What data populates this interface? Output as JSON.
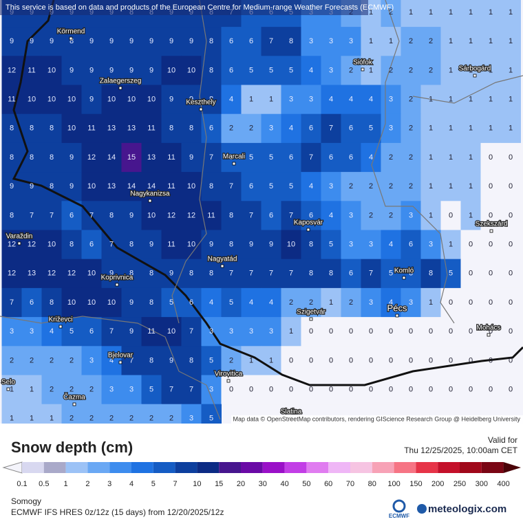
{
  "header": {
    "text": "This service is based on data and products of the European Centre for Medium-range Weather Forecasts (ECMWF)"
  },
  "map": {
    "grid": [
      [
        9,
        9,
        9,
        9,
        9,
        9,
        8,
        8,
        9,
        9,
        8,
        7,
        6,
        6,
        5,
        3,
        3,
        2,
        1,
        2,
        1,
        1,
        1,
        1,
        1,
        1
      ],
      [
        9,
        9,
        9,
        8,
        9,
        9,
        9,
        9,
        9,
        9,
        8,
        6,
        6,
        7,
        8,
        3,
        3,
        3,
        1,
        1,
        2,
        2,
        1,
        1,
        1,
        1
      ],
      [
        12,
        11,
        10,
        9,
        9,
        9,
        9,
        9,
        10,
        10,
        8,
        6,
        5,
        5,
        5,
        4,
        3,
        2,
        1,
        2,
        2,
        2,
        1,
        1,
        1,
        1
      ],
      [
        11,
        10,
        10,
        10,
        9,
        10,
        10,
        10,
        9,
        9,
        8,
        4,
        1,
        1,
        3,
        3,
        4,
        4,
        4,
        3,
        2,
        1,
        1,
        1,
        1,
        1
      ],
      [
        8,
        8,
        8,
        10,
        11,
        13,
        13,
        11,
        8,
        8,
        6,
        2,
        2,
        3,
        4,
        6,
        7,
        6,
        5,
        3,
        2,
        1,
        1,
        1,
        1,
        1
      ],
      [
        8,
        8,
        8,
        9,
        12,
        14,
        15,
        13,
        11,
        9,
        7,
        5,
        5,
        5,
        6,
        7,
        6,
        6,
        4,
        2,
        2,
        1,
        1,
        1,
        0,
        0
      ],
      [
        9,
        9,
        8,
        9,
        10,
        13,
        14,
        14,
        11,
        10,
        8,
        7,
        6,
        5,
        5,
        4,
        3,
        2,
        2,
        2,
        2,
        1,
        1,
        1,
        0,
        0
      ],
      [
        8,
        7,
        7,
        6,
        7,
        8,
        9,
        10,
        12,
        12,
        11,
        8,
        7,
        6,
        7,
        6,
        4,
        3,
        2,
        2,
        3,
        1,
        0,
        1,
        0,
        0
      ],
      [
        12,
        12,
        10,
        8,
        6,
        7,
        8,
        9,
        11,
        10,
        9,
        8,
        9,
        9,
        10,
        8,
        5,
        3,
        3,
        4,
        6,
        3,
        1,
        0,
        0,
        0
      ],
      [
        12,
        13,
        12,
        12,
        10,
        9,
        8,
        8,
        9,
        8,
        8,
        7,
        7,
        7,
        7,
        8,
        8,
        6,
        7,
        5,
        6,
        8,
        5,
        0,
        0,
        0
      ],
      [
        7,
        6,
        8,
        10,
        10,
        10,
        9,
        8,
        5,
        6,
        4,
        5,
        4,
        4,
        2,
        2,
        1,
        2,
        3,
        4,
        3,
        1,
        0,
        0,
        0,
        0
      ],
      [
        3,
        3,
        4,
        5,
        6,
        7,
        9,
        11,
        10,
        7,
        3,
        3,
        3,
        3,
        1,
        0,
        0,
        0,
        0,
        0,
        0,
        0,
        0,
        0,
        0,
        0
      ],
      [
        2,
        2,
        2,
        2,
        3,
        4,
        7,
        8,
        9,
        8,
        5,
        2,
        1,
        1,
        0,
        0,
        0,
        0,
        0,
        0,
        0,
        0,
        0,
        0,
        0,
        0
      ],
      [
        1,
        1,
        2,
        2,
        2,
        3,
        3,
        5,
        7,
        7,
        3,
        0,
        0,
        0,
        0,
        0,
        0,
        0,
        0,
        0,
        0,
        0,
        0,
        0,
        0,
        0
      ],
      [
        1,
        1,
        1,
        2,
        2,
        2,
        2,
        2,
        2,
        3,
        5
      ]
    ],
    "places": [
      "Körmend",
      "Zalaegerszeg",
      "Keszthely",
      "Siófok",
      "Sárbogárd",
      "Marcali",
      "Nagykanizsa",
      "Kaposvár",
      "Szekszárd",
      "Varaždin",
      "Nagyatád",
      "Koprivnica",
      "Komló",
      "Pécs",
      "Szigetvár",
      "Križevci",
      "Mohács",
      "Bjelovar",
      "Virovitica",
      "Čazma",
      "Slatina",
      "Selo"
    ],
    "attribution": "Map data © OpenStreetMap contributors, rendering GIScience Research Group @ Heidelberg University"
  },
  "footer": {
    "title": "Snow depth (cm)",
    "valid_label": "Valid for",
    "valid_time": "Thu 12/25/2025, 10:00am CET",
    "legend": {
      "ticks": [
        0.1,
        0.5,
        1,
        2,
        3,
        4,
        5,
        7,
        10,
        15,
        20,
        30,
        40,
        50,
        60,
        70,
        80,
        100,
        150,
        200,
        250,
        300,
        400
      ],
      "colors": [
        "#f4f4fb",
        "#d8d8f0",
        "#a9a9c9",
        "#9cc2f6",
        "#6aa8f4",
        "#3d8cee",
        "#1f72e2",
        "#155cc4",
        "#0d3f9e",
        "#0c2b84",
        "#47168e",
        "#6a0aa6",
        "#9a10c8",
        "#c23ee6",
        "#e07cf0",
        "#efb6f6",
        "#f6c4e2",
        "#f7a2b6",
        "#f67484",
        "#e63448",
        "#c4102a",
        "#a0081a",
        "#7a0614",
        "#4a0208"
      ]
    },
    "region": "Somogy",
    "model": "ECMWF IFS HRES 0z/12z (15 days) from 12/20/2025/12z",
    "ecmwf": "ECMWF",
    "brand": "meteologix.com"
  }
}
